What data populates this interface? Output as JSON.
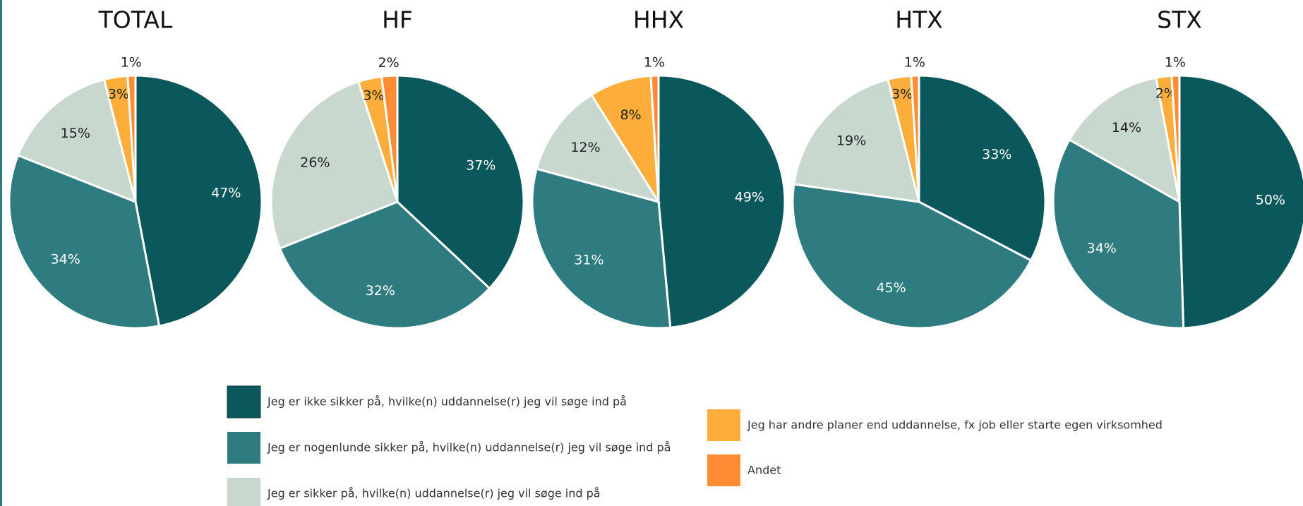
{
  "chart_data": [
    {
      "type": "pie",
      "title": "TOTAL",
      "values": [
        47,
        34,
        15,
        3,
        1
      ],
      "value_labels": [
        "47%",
        "34%",
        "15%",
        "3%",
        "1%"
      ]
    },
    {
      "type": "pie",
      "title": "HF",
      "values": [
        37,
        32,
        26,
        3,
        2
      ],
      "value_labels": [
        "37%",
        "32%",
        "26%",
        "3%",
        "2%"
      ]
    },
    {
      "type": "pie",
      "title": "HHX",
      "values": [
        49,
        31,
        12,
        8,
        1
      ],
      "value_labels": [
        "49%",
        "31%",
        "12%",
        "8%",
        "1%"
      ]
    },
    {
      "type": "pie",
      "title": "HTX",
      "values": [
        33,
        45,
        19,
        3,
        1
      ],
      "value_labels": [
        "33%",
        "45%",
        "19%",
        "3%",
        "1%"
      ]
    },
    {
      "type": "pie",
      "title": "STX",
      "values": [
        50,
        34,
        14,
        2,
        1
      ],
      "value_labels": [
        "50%",
        "34%",
        "14%",
        "2%",
        "1%"
      ]
    }
  ],
  "legend": {
    "categories": [
      "Jeg er ikke sikker på, hvilke(n) uddannelse(r) jeg vil søge ind på",
      "Jeg er nogenlunde sikker på, hvilke(n) uddannelse(r) jeg vil søge ind på",
      "Jeg er sikker på, hvilke(n) uddannelse(r) jeg vil søge ind på",
      "Jeg har andre planer end uddannelse, fx job eller starte egen virksomhed",
      "Andet"
    ],
    "colors": [
      "#0b585c",
      "#2e7b80",
      "#c8d8ce",
      "#fdae3a",
      "#fd8c35"
    ]
  }
}
